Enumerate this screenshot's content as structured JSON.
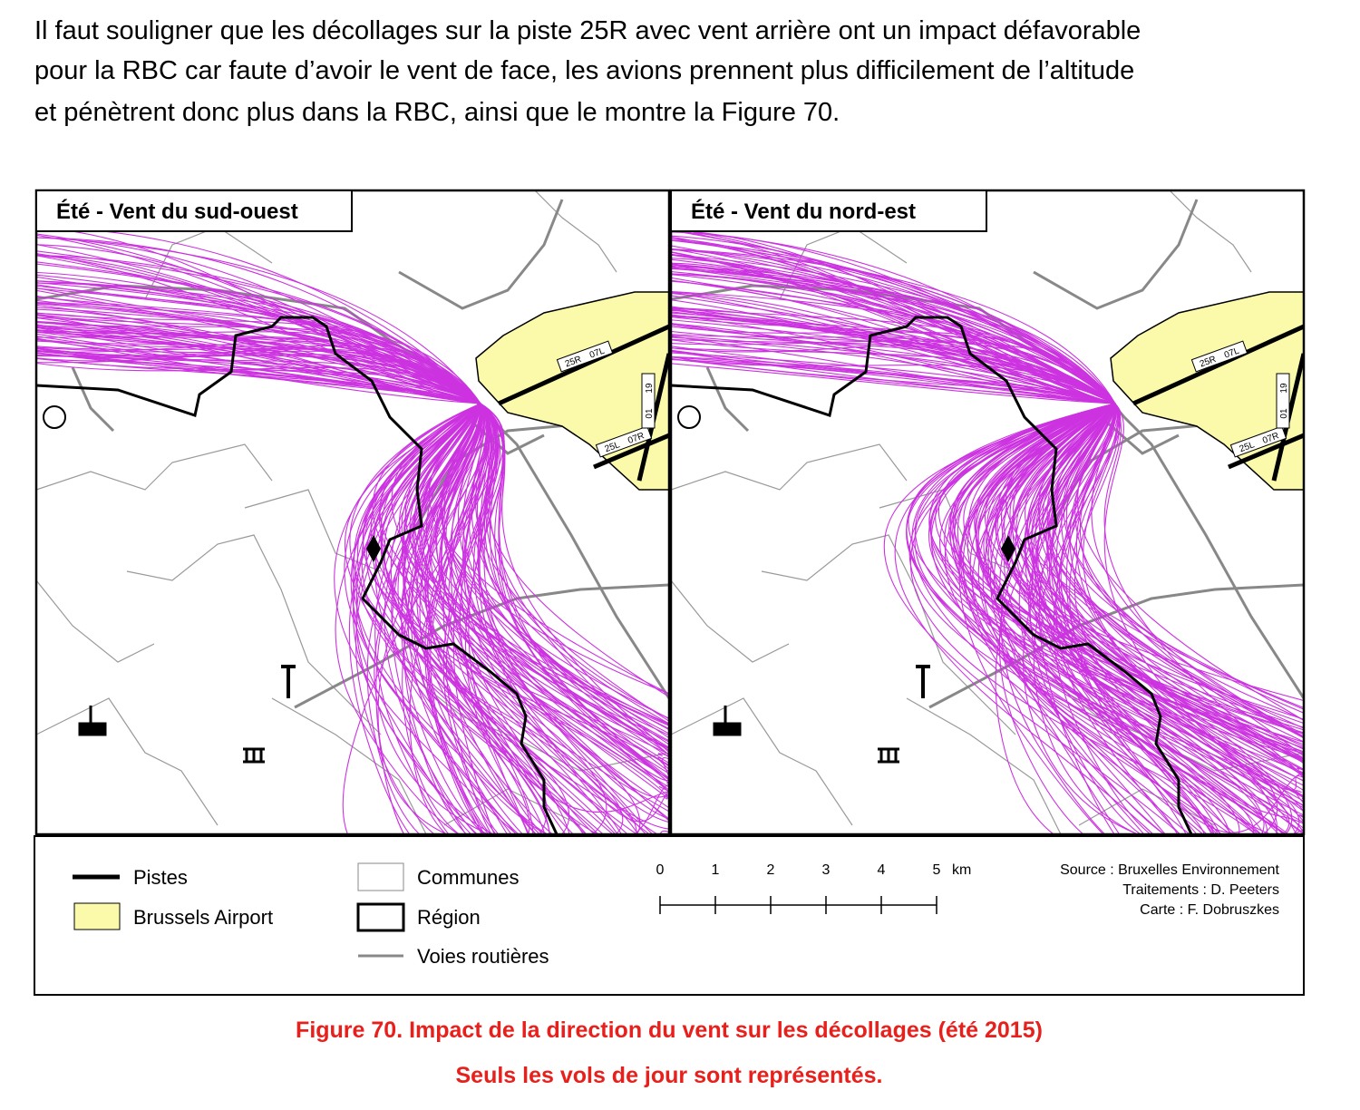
{
  "paragraph": [
    "Il faut souligner que les décollages sur la piste 25R avec vent arrière ont un impact défavorable",
    "pour la RBC car faute d’avoir le vent de face, les avions prennent plus difficilement de l’altitude",
    "et pénètrent donc plus dans la RBC, ainsi que le montre la Figure 70."
  ],
  "maps": [
    {
      "title": "Été - Vent du sud-ouest",
      "runway_labels": [
        "25R",
        "07L",
        "25L",
        "07R",
        "19",
        "01"
      ]
    },
    {
      "title": "Été - Vent du nord-est",
      "runway_labels": [
        "25R",
        "07L",
        "25L",
        "07R",
        "19",
        "01"
      ]
    }
  ],
  "legend": [
    "Pistes",
    "Brussels Airport",
    "Communes",
    "Région",
    "Voies routières"
  ],
  "scale": {
    "ticks": [
      0,
      1,
      2,
      3,
      4,
      5
    ],
    "unit": "km"
  },
  "credits": [
    "Source : Bruxelles Environnement",
    "Traitements : D. Peeters",
    "Carte : F. Dobruszkes"
  ],
  "caption": [
    "Figure 70. Impact de la direction du vent sur les décollages (été 2015)",
    "Seuls les vols de jour sont représentés."
  ]
}
